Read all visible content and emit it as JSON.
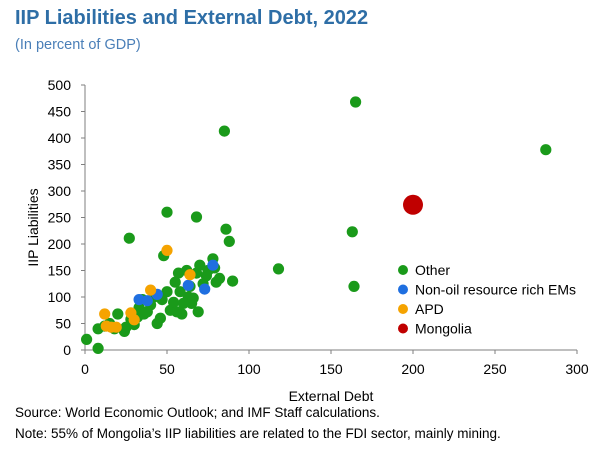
{
  "colors": {
    "title": "#2e6ea6",
    "subtitle": "#4a7fb8",
    "other": "#1a9a1a",
    "non_oil": "#1f6fe0",
    "apd": "#f5a300",
    "mongolia": "#c00000",
    "axis": "#7f7f7f"
  },
  "chart_data": {
    "type": "scatter",
    "title": "IIP Liabilities and External Debt, 2022",
    "subtitle": "(In percent of GDP)",
    "xlabel": "External Debt",
    "ylabel": "IIP Liabilities",
    "xlim": [
      0,
      300
    ],
    "ylim": [
      0,
      500
    ],
    "xticks": [
      "0",
      "50",
      "100",
      "150",
      "200",
      "250",
      "300"
    ],
    "yticks": [
      "0",
      "50",
      "100",
      "150",
      "200",
      "250",
      "300",
      "350",
      "400",
      "450",
      "500"
    ],
    "grid": false,
    "legend_position": "right",
    "series": [
      {
        "name": "Other",
        "color": "#1a9a1a",
        "points": [
          [
            1,
            20
          ],
          [
            8,
            3
          ],
          [
            8,
            40
          ],
          [
            12,
            45
          ],
          [
            15,
            50
          ],
          [
            18,
            40
          ],
          [
            20,
            68
          ],
          [
            24,
            35
          ],
          [
            25,
            43
          ],
          [
            27,
            211
          ],
          [
            28,
            58
          ],
          [
            30,
            48
          ],
          [
            32,
            62
          ],
          [
            33,
            80
          ],
          [
            35,
            95
          ],
          [
            36,
            68
          ],
          [
            38,
            72
          ],
          [
            40,
            85
          ],
          [
            42,
            100
          ],
          [
            44,
            50
          ],
          [
            46,
            60
          ],
          [
            47,
            95
          ],
          [
            48,
            178
          ],
          [
            50,
            260
          ],
          [
            50,
            110
          ],
          [
            52,
            75
          ],
          [
            54,
            90
          ],
          [
            55,
            128
          ],
          [
            56,
            72
          ],
          [
            57,
            145
          ],
          [
            58,
            110
          ],
          [
            59,
            68
          ],
          [
            60,
            88
          ],
          [
            62,
            150
          ],
          [
            63,
            100
          ],
          [
            64,
            120
          ],
          [
            65,
            88
          ],
          [
            66,
            98
          ],
          [
            68,
            145
          ],
          [
            68,
            251
          ],
          [
            69,
            72
          ],
          [
            70,
            160
          ],
          [
            72,
            125
          ],
          [
            74,
            140
          ],
          [
            75,
            150
          ],
          [
            78,
            172
          ],
          [
            79,
            155
          ],
          [
            80,
            128
          ],
          [
            82,
            135
          ],
          [
            85,
            413
          ],
          [
            86,
            228
          ],
          [
            88,
            205
          ],
          [
            90,
            130
          ],
          [
            118,
            153
          ],
          [
            163,
            223
          ],
          [
            164,
            120
          ],
          [
            165,
            468
          ],
          [
            199,
            268
          ],
          [
            281,
            378
          ]
        ]
      },
      {
        "name": "Non-oil resource rich EMs",
        "color": "#1f6fe0",
        "points": [
          [
            33,
            95
          ],
          [
            38,
            93
          ],
          [
            44,
            105
          ],
          [
            63,
            122
          ],
          [
            73,
            115
          ],
          [
            78,
            160
          ]
        ]
      },
      {
        "name": "APD",
        "color": "#f5a300",
        "points": [
          [
            12,
            68
          ],
          [
            13,
            45
          ],
          [
            16,
            43
          ],
          [
            19,
            43
          ],
          [
            28,
            70
          ],
          [
            30,
            57
          ],
          [
            40,
            113
          ],
          [
            50,
            188
          ],
          [
            64,
            142
          ]
        ]
      },
      {
        "name": "Mongolia",
        "color": "#c00000",
        "points": [
          [
            200,
            274
          ]
        ]
      }
    ]
  },
  "footer": {
    "source": "Source: World Economic Outlook; and IMF Staff calculations.",
    "note": "Note: 55% of Mongolia’s IIP liabilities are related to the FDI sector, mainly mining."
  }
}
